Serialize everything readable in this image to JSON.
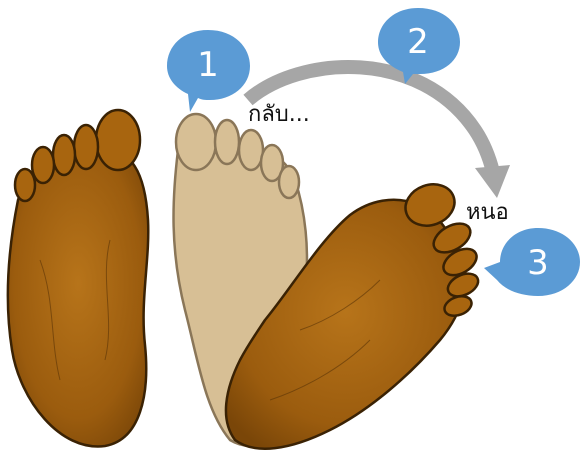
{
  "steps": [
    {
      "number": "1"
    },
    {
      "number": "2"
    },
    {
      "number": "3"
    }
  ],
  "labels": {
    "back": "กลับ...",
    "turn": "หนอ"
  },
  "colors": {
    "foot_dark": "#a8650f",
    "foot_dark_stroke": "#3a2204",
    "foot_light": "#d7bf95",
    "foot_light_stroke": "#8a7658",
    "bubble": "#5b9bd5",
    "arrow": "#a6a6a6"
  }
}
